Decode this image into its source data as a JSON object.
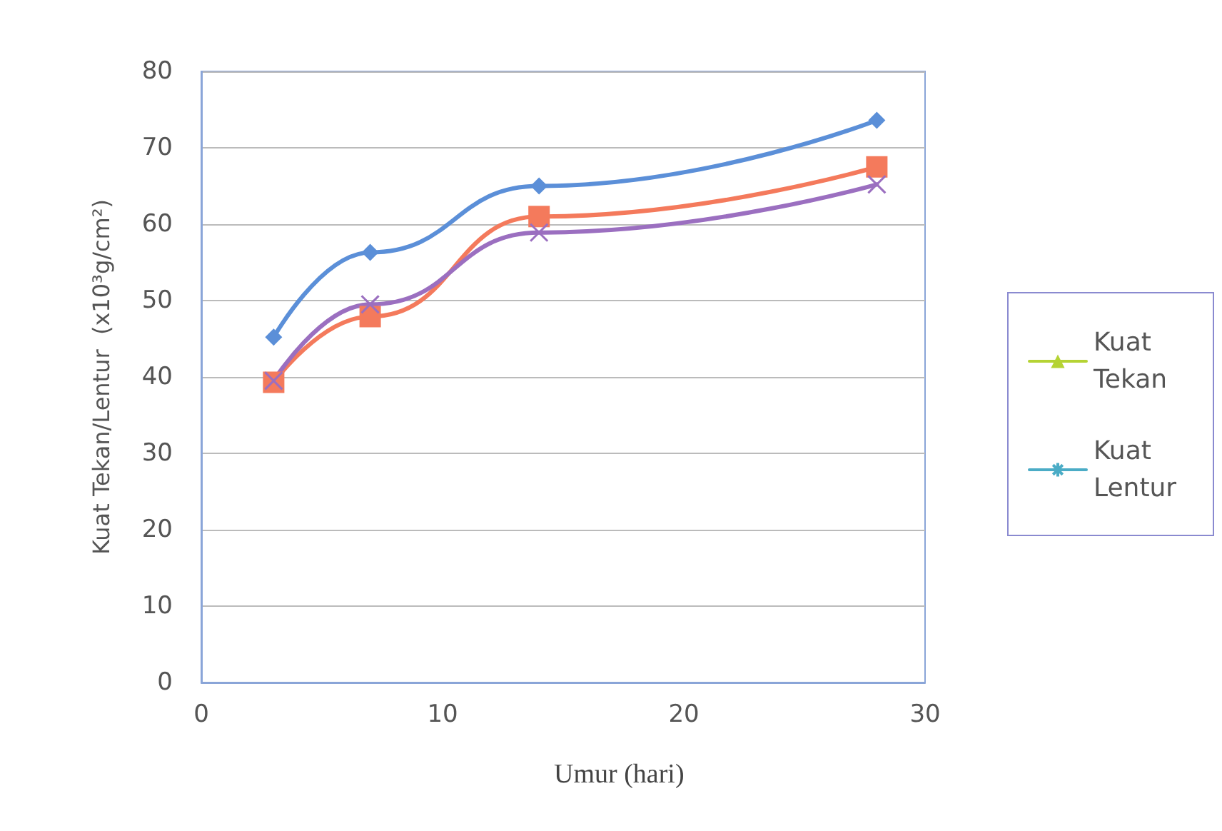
{
  "chart_data": {
    "type": "line",
    "xlabel": "Umur (hari)",
    "ylabel": "Kuat Tekan/Lentur  (x10³g/cm²)",
    "x": [
      3,
      7,
      14,
      28
    ],
    "xlim": [
      0,
      30
    ],
    "xticks": [
      0,
      10,
      20,
      30
    ],
    "ylim": [
      0,
      80
    ],
    "yticks": [
      0,
      10,
      20,
      30,
      40,
      50,
      60,
      70,
      80
    ],
    "grid": "y",
    "legend": "right",
    "series": [
      {
        "name": "Kuat Tekan",
        "color": "#b5d334",
        "marker": "triangle",
        "values": [
          null,
          null,
          null,
          null
        ]
      },
      {
        "name": "Kuat Lentur",
        "color": "#4bacc6",
        "marker": "star",
        "values": [
          null,
          null,
          null,
          null
        ]
      },
      {
        "color": "#5b8fd8",
        "marker": "diamond",
        "values": [
          45.2,
          56.3,
          65,
          73.6
        ]
      },
      {
        "color": "#f47a5c",
        "marker": "square",
        "values": [
          39.3,
          47.9,
          61,
          67.5
        ]
      },
      {
        "color": "#9b6fc0",
        "marker": "cross",
        "values": [
          39.5,
          49.5,
          58.9,
          65.2
        ]
      }
    ]
  }
}
